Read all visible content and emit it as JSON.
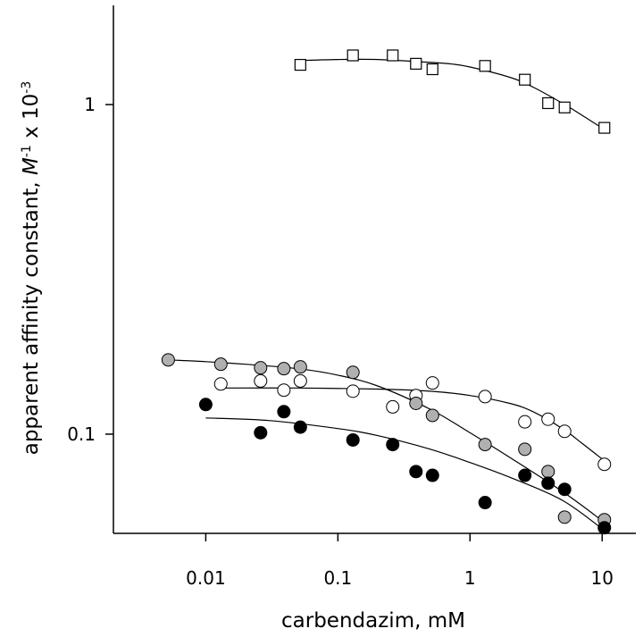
{
  "chart_data": {
    "type": "scatter",
    "title": "",
    "xlabel": "carbendazim, mM",
    "ylabel": {
      "text_before_M": "apparent affinity constant, ",
      "italic_M": "M",
      "sup_minus1": "-1",
      "text_x10": " x 10",
      "sup_minus3": "-3"
    },
    "x_scale": "log",
    "y_scale": "log",
    "xlim": [
      0.002,
      18
    ],
    "ylim": [
      0.05,
      2
    ],
    "x_ticks": [
      {
        "value": 0.01,
        "label": "0.01"
      },
      {
        "value": 0.1,
        "label": "0.1"
      },
      {
        "value": 1,
        "label": "1"
      },
      {
        "value": 10,
        "label": "10"
      }
    ],
    "y_ticks": [
      {
        "value": 0.1,
        "label": "0.1"
      },
      {
        "value": 1,
        "label": "1"
      }
    ],
    "grid": false,
    "series": [
      {
        "marker": "square-open",
        "color": "#000000",
        "points": [
          [
            0.052,
            1.32
          ],
          [
            0.13,
            1.41
          ],
          [
            0.26,
            1.41
          ],
          [
            0.39,
            1.33
          ],
          [
            0.52,
            1.28
          ],
          [
            1.3,
            1.31
          ],
          [
            2.6,
            1.19
          ],
          [
            3.9,
            1.01
          ],
          [
            5.2,
            0.98
          ],
          [
            10.4,
            0.85
          ]
        ],
        "fit": [
          [
            0.05,
            1.36
          ],
          [
            0.1,
            1.37
          ],
          [
            0.2,
            1.37
          ],
          [
            0.4,
            1.35
          ],
          [
            0.7,
            1.33
          ],
          [
            1.0,
            1.3
          ],
          [
            2.0,
            1.21
          ],
          [
            3.0,
            1.13
          ],
          [
            5.0,
            1.01
          ],
          [
            7.0,
            0.93
          ],
          [
            10.4,
            0.84
          ]
        ]
      },
      {
        "marker": "circle-open",
        "color": "#ffffff",
        "points": [
          [
            0.013,
            0.142
          ],
          [
            0.026,
            0.145
          ],
          [
            0.039,
            0.136
          ],
          [
            0.052,
            0.145
          ],
          [
            0.13,
            0.135
          ],
          [
            0.26,
            0.121
          ],
          [
            0.39,
            0.131
          ],
          [
            0.52,
            0.143
          ],
          [
            1.3,
            0.13
          ],
          [
            2.6,
            0.109
          ],
          [
            3.9,
            0.111
          ],
          [
            5.2,
            0.102
          ],
          [
            10.4,
            0.081
          ]
        ],
        "fit": [
          [
            0.013,
            0.138
          ],
          [
            0.05,
            0.138
          ],
          [
            0.2,
            0.137
          ],
          [
            0.5,
            0.135
          ],
          [
            1.0,
            0.131
          ],
          [
            2.0,
            0.124
          ],
          [
            3.0,
            0.117
          ],
          [
            5.0,
            0.104
          ],
          [
            7.0,
            0.094
          ],
          [
            10.4,
            0.083
          ]
        ]
      },
      {
        "marker": "circle-gray",
        "color": "#b0b0b0",
        "points": [
          [
            0.0052,
            0.168
          ],
          [
            0.013,
            0.163
          ],
          [
            0.026,
            0.159
          ],
          [
            0.039,
            0.158
          ],
          [
            0.052,
            0.16
          ],
          [
            0.13,
            0.154
          ],
          [
            0.39,
            0.124
          ],
          [
            0.52,
            0.114
          ],
          [
            1.3,
            0.093
          ],
          [
            2.6,
            0.09
          ],
          [
            3.9,
            0.077
          ],
          [
            5.2,
            0.056
          ],
          [
            10.4,
            0.055
          ]
        ],
        "fit": [
          [
            0.0052,
            0.168
          ],
          [
            0.01,
            0.166
          ],
          [
            0.02,
            0.163
          ],
          [
            0.05,
            0.158
          ],
          [
            0.1,
            0.151
          ],
          [
            0.2,
            0.14
          ],
          [
            0.5,
            0.119
          ],
          [
            1.0,
            0.101
          ],
          [
            2.0,
            0.085
          ],
          [
            5.0,
            0.067
          ],
          [
            10.4,
            0.054
          ]
        ]
      },
      {
        "marker": "circle-filled",
        "color": "#000000",
        "points": [
          [
            0.01,
            0.123
          ],
          [
            0.026,
            0.101
          ],
          [
            0.039,
            0.117
          ],
          [
            0.052,
            0.105
          ],
          [
            0.13,
            0.096
          ],
          [
            0.26,
            0.093
          ],
          [
            0.39,
            0.077
          ],
          [
            0.52,
            0.075
          ],
          [
            1.3,
            0.062
          ],
          [
            2.6,
            0.075
          ],
          [
            3.9,
            0.071
          ],
          [
            5.2,
            0.068
          ],
          [
            10.4,
            0.052
          ]
        ],
        "fit": [
          [
            0.01,
            0.112
          ],
          [
            0.03,
            0.11
          ],
          [
            0.1,
            0.104
          ],
          [
            0.2,
            0.099
          ],
          [
            0.5,
            0.09
          ],
          [
            1.0,
            0.082
          ],
          [
            2.0,
            0.074
          ],
          [
            5.0,
            0.063
          ],
          [
            10.4,
            0.051
          ]
        ]
      }
    ]
  }
}
